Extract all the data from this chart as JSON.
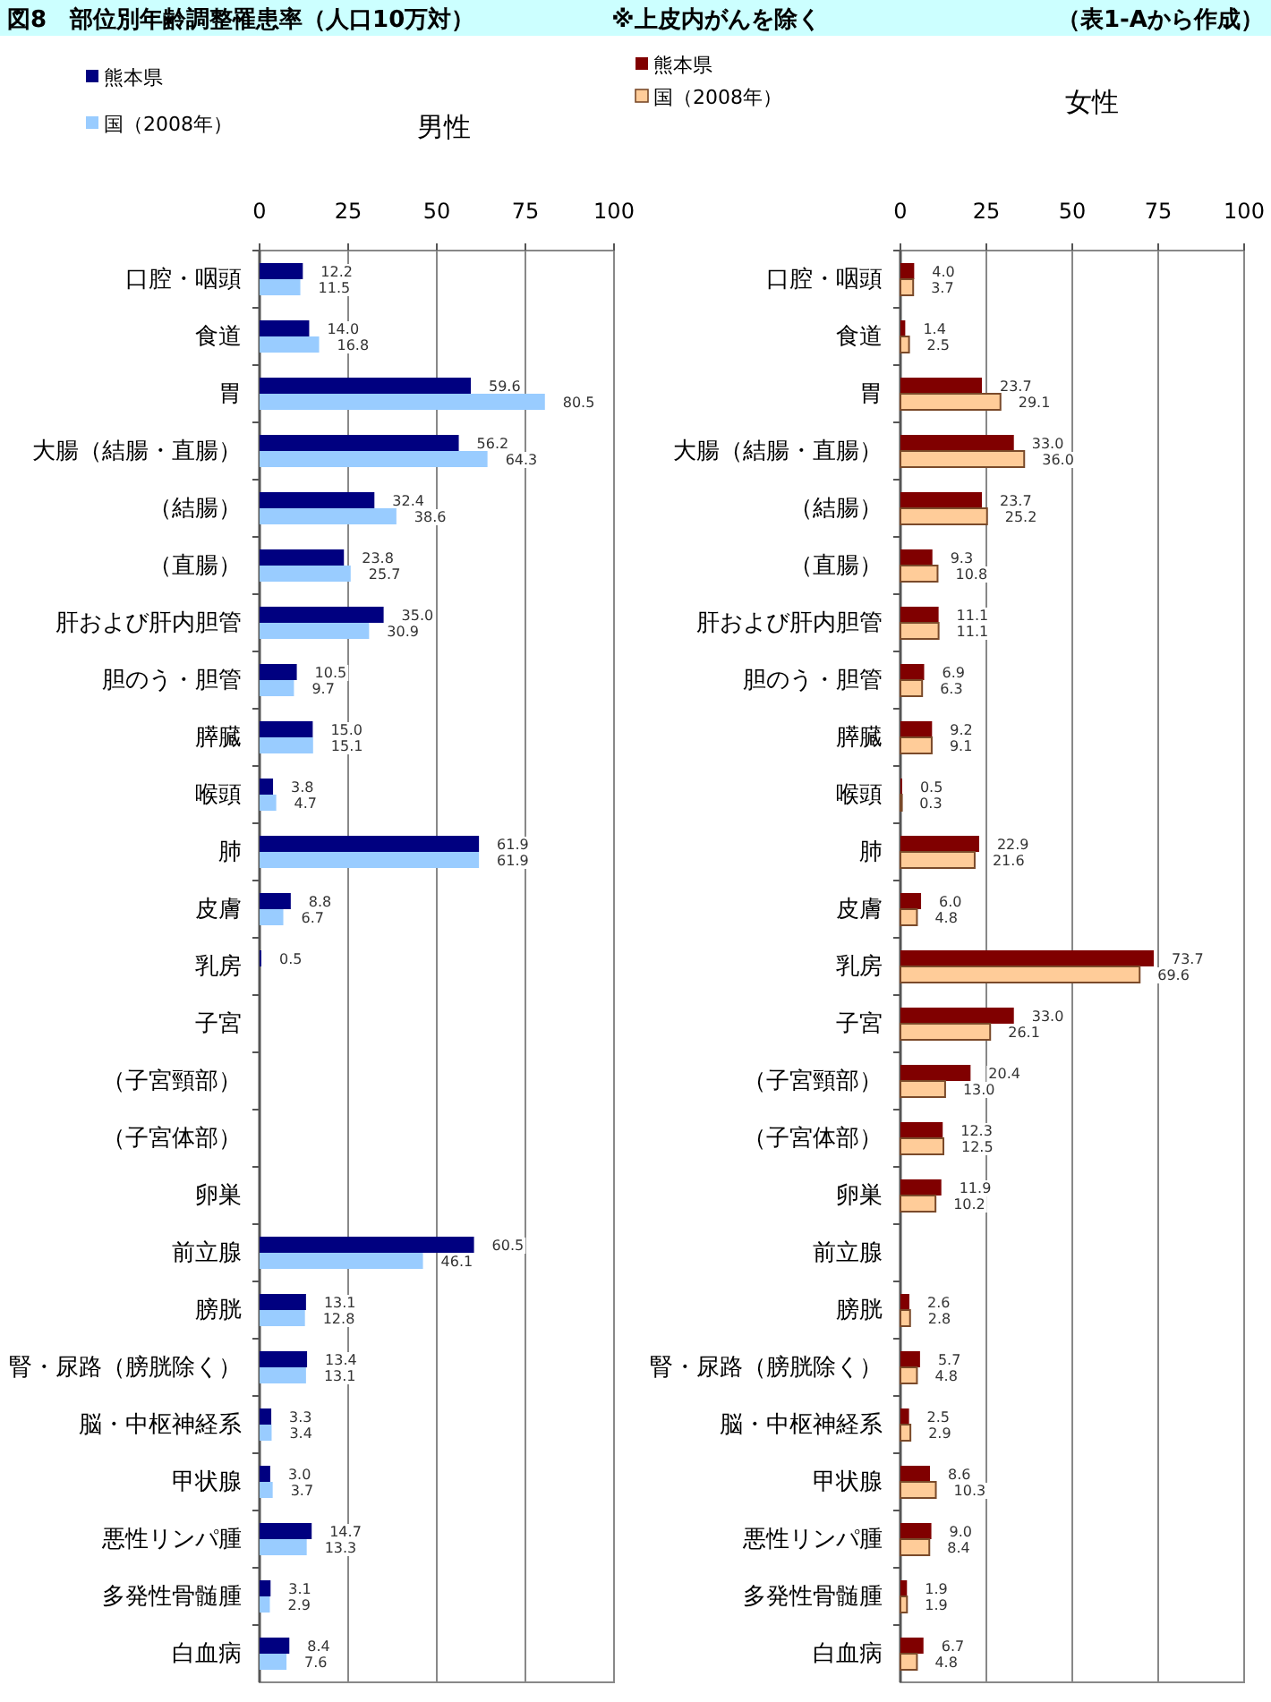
{
  "chart_data": [
    {
      "type": "bar",
      "orientation": "horizontal",
      "title": "男性",
      "annotations": [
        "図8　部位別年齢調整罹患率（人口10万対）",
        "※上皮内がんを除く",
        "（表1-Aから作成）"
      ],
      "categories": [
        "口腔・咽頭",
        "食道",
        "胃",
        "大腸（結腸・直腸）",
        "（結腸）",
        "（直腸）",
        "肝および肝内胆管",
        "胆のう・胆管",
        "膵臓",
        "喉頭",
        "肺",
        "皮膚",
        "乳房",
        "子宮",
        "（子宮頸部）",
        "（子宮体部）",
        "卵巣",
        "前立腺",
        "膀胱",
        "腎・尿路（膀胱除く）",
        "脳・中枢神経系",
        "甲状腺",
        "悪性リンパ腫",
        "多発性骨髄腫",
        "白血病"
      ],
      "series": [
        {
          "name": "熊本県",
          "color": "#000080",
          "values": [
            12.2,
            14.0,
            59.6,
            56.2,
            32.4,
            23.8,
            35.0,
            10.5,
            15.0,
            3.8,
            61.9,
            8.8,
            0.5,
            null,
            null,
            null,
            null,
            60.5,
            13.1,
            13.4,
            3.3,
            3.0,
            14.7,
            3.1,
            8.4
          ],
          "value_labels": [
            "12.2",
            "14.0",
            "59.6",
            "56.2",
            "32.4",
            "23.8",
            "35.0",
            "10.5",
            "15.0",
            "3.8",
            "61.9",
            "8.8",
            "0.5",
            null,
            null,
            null,
            null,
            "60.5",
            "13.1",
            "13.4",
            "3.3",
            "3.0",
            "14.7",
            "3.1",
            "8.4"
          ]
        },
        {
          "name": "国（2008年）",
          "color": "#99ccff",
          "values": [
            11.5,
            16.8,
            80.5,
            64.3,
            38.6,
            25.7,
            30.9,
            9.7,
            15.1,
            4.7,
            61.9,
            6.7,
            null,
            null,
            null,
            null,
            null,
            46.1,
            12.8,
            13.1,
            3.4,
            3.7,
            13.3,
            2.9,
            7.6
          ],
          "value_labels": [
            "11.5",
            "16.8",
            "80.5",
            "64.3",
            "38.6",
            "25.7",
            "30.9",
            "9.7",
            "15.1",
            "4.7",
            "61.9",
            "6.7",
            null,
            null,
            null,
            null,
            null,
            "46.1",
            "12.8",
            "13.1",
            "3.4",
            "3.7",
            "13.3",
            "2.9",
            "7.6"
          ]
        }
      ],
      "xlim": [
        0,
        100
      ],
      "xticks": [
        0,
        25,
        50,
        75,
        100
      ],
      "grid": "x",
      "legend": "top left"
    },
    {
      "type": "bar",
      "orientation": "horizontal",
      "title": "女性",
      "categories": [
        "口腔・咽頭",
        "食道",
        "胃",
        "大腸（結腸・直腸）",
        "（結腸）",
        "（直腸）",
        "肝および肝内胆管",
        "胆のう・胆管",
        "膵臓",
        "喉頭",
        "肺",
        "皮膚",
        "乳房",
        "子宮",
        "（子宮頸部）",
        "（子宮体部）",
        "卵巣",
        "前立腺",
        "膀胱",
        "腎・尿路（膀胱除く）",
        "脳・中枢神経系",
        "甲状腺",
        "悪性リンパ腫",
        "多発性骨髄腫",
        "白血病"
      ],
      "series": [
        {
          "name": "熊本県",
          "color": "#800000",
          "values": [
            4.0,
            1.4,
            23.7,
            33.0,
            23.7,
            9.3,
            11.1,
            6.9,
            9.2,
            0.5,
            22.9,
            6.0,
            73.7,
            33.0,
            20.4,
            12.3,
            11.9,
            null,
            2.6,
            5.7,
            2.5,
            8.6,
            9.0,
            1.9,
            6.7
          ],
          "value_labels": [
            "4.0",
            "1.4",
            "23.7",
            "33.0",
            "23.7",
            "9.3",
            "11.1",
            "6.9",
            "9.2",
            "0.5",
            "22.9",
            "6.0",
            "73.7",
            "33.0",
            "20.4",
            "12.3",
            "11.9",
            null,
            "2.6",
            "5.7",
            "2.5",
            "8.6",
            "9.0",
            "1.9",
            "6.7"
          ]
        },
        {
          "name": "国（2008年）",
          "color": "#ffcc99",
          "values": [
            3.7,
            2.5,
            29.1,
            36.0,
            25.2,
            10.8,
            11.1,
            6.3,
            9.1,
            0.3,
            21.6,
            4.8,
            69.6,
            26.1,
            13.0,
            12.5,
            10.2,
            null,
            2.8,
            4.8,
            2.9,
            10.3,
            8.4,
            1.9,
            4.8
          ],
          "value_labels": [
            "3.7",
            "2.5",
            "29.1",
            "36.0",
            "25.2",
            "10.8",
            "11.1",
            "6.3",
            "9.1",
            "0.3",
            "21.6",
            "4.8",
            "69.6",
            "26.1",
            "13.0",
            "12.5",
            "10.2",
            null,
            "2.8",
            "4.8",
            "2.9",
            "10.3",
            "8.4",
            "1.9",
            "4.8"
          ]
        }
      ],
      "xlim": [
        0,
        100
      ],
      "xticks": [
        0,
        25,
        50,
        75,
        100
      ],
      "grid": "x",
      "legend": "top left"
    }
  ]
}
